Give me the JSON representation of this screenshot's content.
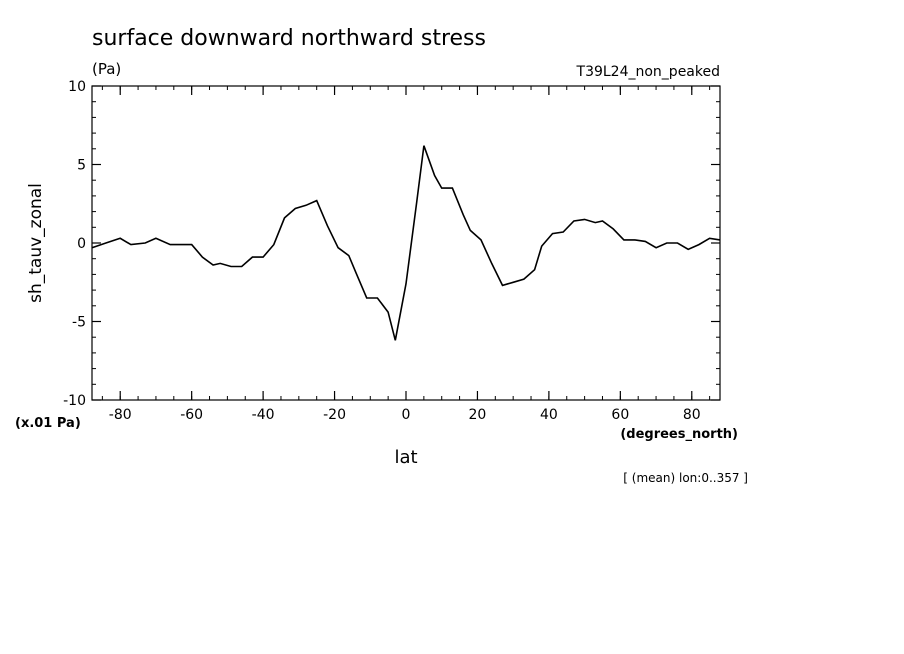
{
  "chart_data": {
    "type": "line",
    "title": "surface downward northward stress",
    "units": "(Pa)",
    "experiment": "T39L24_non_peaked",
    "ylabel": "sh_tauv_zonal",
    "xlabel": "lat",
    "x_units": "(degrees_north)",
    "y_scale_note": "(x.01 Pa)",
    "footnote": "[ (mean) lon:0..357 ]",
    "xlim": [
      -87.9,
      87.9
    ],
    "ylim": [
      -10,
      10
    ],
    "x_ticks": [
      -80,
      -60,
      -40,
      -20,
      0,
      20,
      40,
      60,
      80
    ],
    "x_tick_labels": [
      "-80",
      "-60",
      "-40",
      "-20",
      "0",
      "20",
      "40",
      "60",
      "80"
    ],
    "y_ticks": [
      -10,
      -5,
      0,
      5,
      10
    ],
    "y_tick_labels": [
      "-10",
      "-5",
      "0",
      "5",
      "10"
    ],
    "grid": false,
    "series": [
      {
        "x": [
          -87.9,
          -84,
          -80,
          -77,
          -73,
          -70,
          -66,
          -63,
          -60,
          -57,
          -54,
          -52,
          -49,
          -46,
          -43,
          -40,
          -37,
          -34,
          -31,
          -28,
          -25,
          -22,
          -19,
          -16,
          -14,
          -11,
          -8,
          -5,
          -3,
          0,
          3,
          5,
          8,
          10,
          13,
          16,
          18,
          21,
          24,
          27,
          30,
          33,
          36,
          38,
          41,
          44,
          47,
          50,
          53,
          55,
          58,
          61,
          64,
          67,
          70,
          73,
          76,
          79,
          82,
          85,
          87.9
        ],
        "y": [
          -0.3,
          0.0,
          0.3,
          -0.1,
          0.0,
          0.3,
          -0.1,
          -0.1,
          -0.1,
          -0.9,
          -1.4,
          -1.3,
          -1.5,
          -1.5,
          -0.9,
          -0.9,
          -0.1,
          1.6,
          2.2,
          2.4,
          2.7,
          1.1,
          -0.3,
          -0.8,
          -1.9,
          -3.5,
          -3.5,
          -4.4,
          -6.2,
          -2.6,
          2.6,
          6.2,
          4.3,
          3.5,
          3.5,
          1.8,
          0.8,
          0.2,
          -1.3,
          -2.7,
          -2.5,
          -2.3,
          -1.7,
          -0.2,
          0.6,
          0.7,
          1.4,
          1.5,
          1.3,
          1.4,
          0.9,
          0.2,
          0.2,
          0.1,
          -0.3,
          0.0,
          0.0,
          -0.4,
          -0.1,
          0.3,
          0.2
        ]
      }
    ]
  }
}
